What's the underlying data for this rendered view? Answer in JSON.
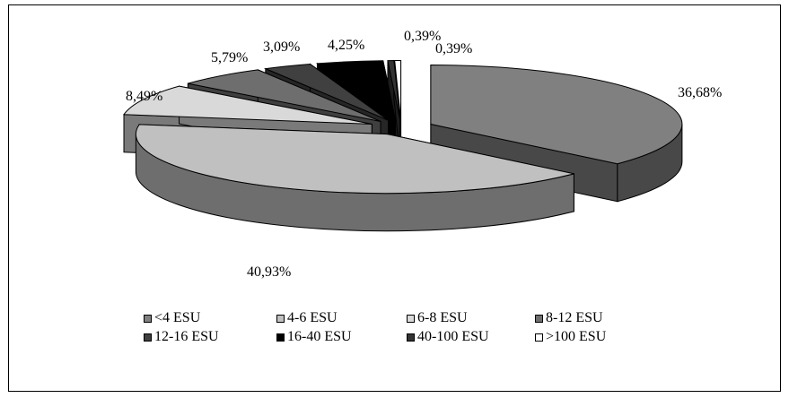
{
  "chart_data": {
    "type": "pie",
    "three_d": true,
    "exploded": true,
    "categories": [
      "<4 ESU",
      "4-6 ESU",
      "6-8 ESU",
      "8-12 ESU",
      "12-16 ESU",
      "16-40 ESU",
      "40-100 ESU",
      ">100 ESU"
    ],
    "values": [
      36.68,
      40.93,
      8.49,
      5.79,
      3.09,
      4.25,
      0.39,
      0.39
    ],
    "data_labels": [
      "36,68%",
      "40,93%",
      "8,49%",
      "5,79%",
      "3,09%",
      "4,25%",
      "0,39%",
      "0,39%"
    ],
    "colors": [
      "#808080",
      "#c0c0c0",
      "#d9d9d9",
      "#6e6e6e",
      "#404040",
      "#000000",
      "#333333",
      "#ffffff"
    ],
    "side_colors": [
      "#484848",
      "#6e6e6e",
      "#7a7a7a",
      "#3f3f3f",
      "#262626",
      "#000000",
      "#1c1c1c",
      "#9a9a9a"
    ],
    "legend_position": "bottom",
    "title": ""
  }
}
